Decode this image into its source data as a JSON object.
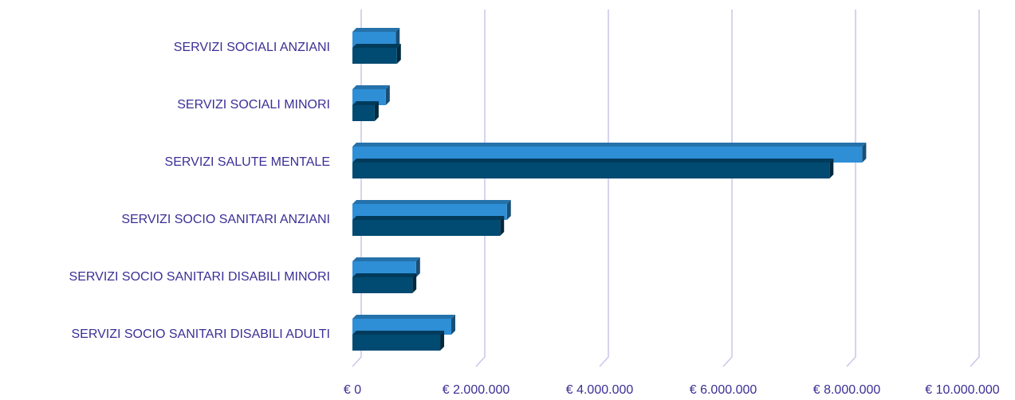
{
  "chart_data": {
    "type": "bar",
    "orientation": "horizontal",
    "categories": [
      "SERVIZI SOCIALI ANZIANI",
      "SERVIZI SOCIALI MINORI",
      "SERVIZI SALUTE MENTALE",
      "SERVIZI SOCIO SANITARI ANZIANI",
      "SERVIZI SOCIO SANITARI DISABILI MINORI",
      "SERVIZI SOCIO SANITARI DISABILI ADULTI"
    ],
    "series": [
      {
        "color": "#2e8fd6",
        "values": [
          700000,
          540000,
          8250000,
          2500000,
          1030000,
          1600000
        ]
      },
      {
        "color": "#014a72",
        "values": [
          720000,
          360000,
          7720000,
          2390000,
          970000,
          1420000
        ]
      }
    ],
    "xlim": [
      0,
      10000000
    ],
    "xticks": [
      {
        "value": 0,
        "label": "€ 0"
      },
      {
        "value": 2000000,
        "label": "€ 2.000.000"
      },
      {
        "value": 4000000,
        "label": "€ 4.000.000"
      },
      {
        "value": 6000000,
        "label": "€ 6.000.000"
      },
      {
        "value": 8000000,
        "label": "€ 8.000.000"
      },
      {
        "value": 10000000,
        "label": "€ 10.000.000"
      }
    ],
    "grid": true
  }
}
